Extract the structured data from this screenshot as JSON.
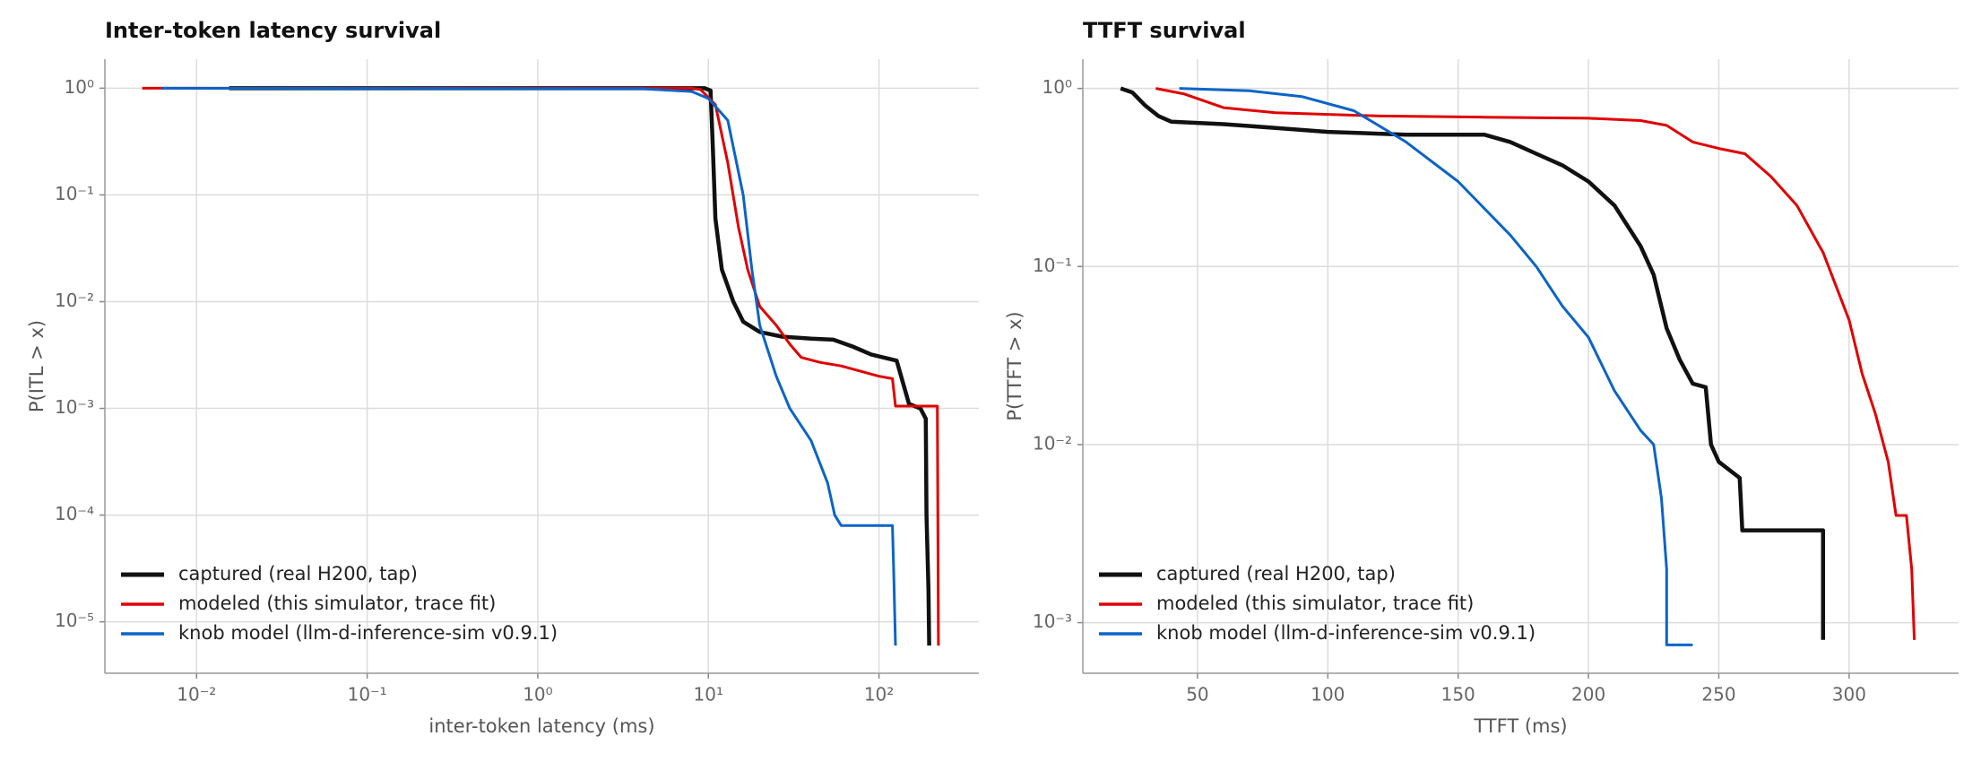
{
  "chart_data": [
    {
      "type": "line",
      "title": "Inter-token latency survival",
      "x_label": "inter-token latency (ms)",
      "y_label": "P(ITL > x)",
      "xscale": "log",
      "yscale": "log",
      "grid": true,
      "legend": "lower left",
      "xlim": [
        0.0029,
        385
      ],
      "ylim": [
        3.3e-06,
        1.87
      ],
      "xticks": [
        {
          "value": 0.01,
          "label": "10⁻²"
        },
        {
          "value": 0.1,
          "label": "10⁻¹"
        },
        {
          "value": 1,
          "label": "10⁰"
        },
        {
          "value": 10,
          "label": "10¹"
        },
        {
          "value": 100,
          "label": "10²"
        }
      ],
      "yticks": [
        {
          "value": 1,
          "label": "10⁰"
        },
        {
          "value": 0.1,
          "label": "10⁻¹"
        },
        {
          "value": 0.01,
          "label": "10⁻²"
        },
        {
          "value": 0.001,
          "label": "10⁻³"
        },
        {
          "value": 0.0001,
          "label": "10⁻⁴"
        },
        {
          "value": 1e-05,
          "label": "10⁻⁵"
        }
      ],
      "series": [
        {
          "name": "captured (real H200, tap)",
          "color": "#111111",
          "width": 4.5,
          "x": [
            0.0155,
            9.5,
            10.3,
            10.6,
            11,
            12,
            14,
            16,
            20,
            27,
            40,
            54,
            70,
            90,
            127,
            150,
            175,
            188,
            190,
            195,
            197
          ],
          "values": [
            1,
            1,
            0.95,
            0.3,
            0.06,
            0.02,
            0.01,
            0.0065,
            0.0052,
            0.0047,
            0.0045,
            0.0044,
            0.0038,
            0.0032,
            0.0028,
            0.0011,
            0.001,
            0.0008,
            0.0001,
            2e-05,
            6e-06
          ]
        },
        {
          "name": "modeled (this simulator, trace fit)",
          "color": "#e00000",
          "width": 3,
          "x": [
            0.0048,
            8,
            9,
            11,
            13,
            15,
            17,
            20,
            25,
            30,
            35,
            45,
            60,
            100,
            120,
            125,
            220,
            223
          ],
          "values": [
            1,
            1,
            0.97,
            0.7,
            0.2,
            0.05,
            0.02,
            0.009,
            0.006,
            0.004,
            0.003,
            0.0027,
            0.0025,
            0.002,
            0.0019,
            0.00105,
            0.00105,
            6e-06
          ]
        },
        {
          "name": "knob model (llm-d-inference-sim v0.9.1)",
          "color": "#0a64c8",
          "width": 3,
          "x": [
            0.0062,
            4,
            8,
            10,
            13,
            16,
            18,
            20,
            25,
            30,
            40,
            50,
            55,
            60,
            120,
            122,
            125
          ],
          "values": [
            1,
            0.99,
            0.93,
            0.8,
            0.5,
            0.1,
            0.02,
            0.006,
            0.002,
            0.001,
            0.0005,
            0.0002,
            0.0001,
            8e-05,
            8e-05,
            3e-05,
            6e-06
          ]
        }
      ]
    },
    {
      "type": "line",
      "title": "TTFT survival",
      "x_label": "TTFT (ms)",
      "y_label": "P(TTFT > x)",
      "xscale": "linear",
      "yscale": "log",
      "grid": true,
      "legend": "lower left",
      "xlim": [
        6,
        342
      ],
      "ylim": [
        0.00052,
        1.46
      ],
      "xticks": [
        50,
        100,
        150,
        200,
        250,
        300
      ],
      "yticks": [
        {
          "value": 1,
          "label": "10⁰"
        },
        {
          "value": 0.1,
          "label": "10⁻¹"
        },
        {
          "value": 0.01,
          "label": "10⁻²"
        },
        {
          "value": 0.001,
          "label": "10⁻³"
        }
      ],
      "series": [
        {
          "name": "captured (real H200, tap)",
          "color": "#111111",
          "width": 4.5,
          "x": [
            20.5,
            25,
            30,
            35,
            40,
            60,
            80,
            100,
            130,
            160,
            170,
            180,
            190,
            200,
            210,
            220,
            225,
            230,
            235,
            240,
            245,
            247,
            250,
            258,
            259,
            290,
            290
          ],
          "values": [
            1,
            0.95,
            0.8,
            0.7,
            0.65,
            0.63,
            0.6,
            0.57,
            0.55,
            0.55,
            0.5,
            0.43,
            0.37,
            0.3,
            0.22,
            0.13,
            0.09,
            0.045,
            0.03,
            0.022,
            0.021,
            0.01,
            0.008,
            0.0065,
            0.0033,
            0.0033,
            0.0008
          ]
        },
        {
          "name": "modeled (this simulator, trace fit)",
          "color": "#e00000",
          "width": 3,
          "x": [
            34,
            45,
            60,
            80,
            120,
            160,
            200,
            220,
            230,
            240,
            250,
            260,
            270,
            280,
            290,
            300,
            305,
            310,
            315,
            318,
            322,
            324,
            325
          ],
          "values": [
            1,
            0.93,
            0.78,
            0.73,
            0.7,
            0.69,
            0.68,
            0.66,
            0.62,
            0.5,
            0.46,
            0.43,
            0.32,
            0.22,
            0.12,
            0.05,
            0.025,
            0.015,
            0.008,
            0.004,
            0.004,
            0.002,
            0.0008
          ]
        },
        {
          "name": "knob model (llm-d-inference-sim v0.9.1)",
          "color": "#0a64c8",
          "width": 3,
          "x": [
            43,
            70,
            90,
            110,
            130,
            150,
            170,
            180,
            190,
            200,
            210,
            220,
            225,
            228,
            230,
            230,
            240
          ],
          "values": [
            1,
            0.97,
            0.9,
            0.75,
            0.5,
            0.3,
            0.15,
            0.1,
            0.06,
            0.04,
            0.02,
            0.012,
            0.01,
            0.005,
            0.002,
            0.00075,
            0.00075
          ]
        }
      ]
    }
  ]
}
